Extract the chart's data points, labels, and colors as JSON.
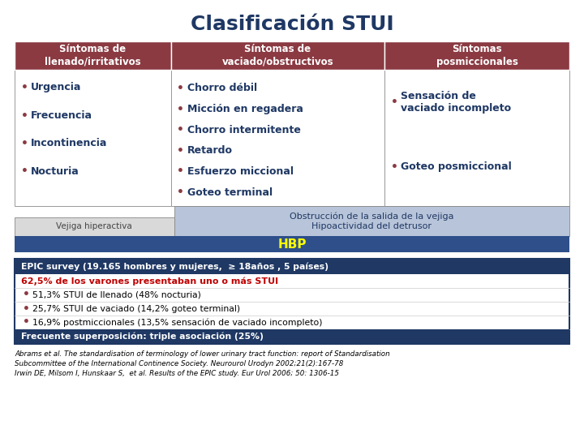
{
  "title": "Clasificación STUI",
  "title_color": "#1F3864",
  "bg_color": "#FFFFFF",
  "col1_header": "Síntomas de\nllenado/irritativos",
  "col2_header": "Síntomas de\nvaciado/obstructivos",
  "col3_header": "Síntomas\nposmiccionales",
  "header_bg": "#8B3A42",
  "header_text_color": "#FFFFFF",
  "col1_items": [
    "Urgencia",
    "Frecuencia",
    "Incontinencia",
    "Nocturia"
  ],
  "col2_items": [
    "Chorro débil",
    "Micción en regadera",
    "Chorro intermitente",
    "Retardo",
    "Esfuerzo miccional",
    "Goteo terminal"
  ],
  "col3_items": [
    "Sensación de\nvaciado incompleto",
    "Goteo posmiccional"
  ],
  "cell_text_color": "#1F3864",
  "bullet_color": "#8B3A42",
  "vejiga_text": "Vejiga hiperactiva",
  "vejiga_bg": "#D9D9D9",
  "obstruccion_text": "Obstrucción de la salida de la vejiga\nHipoactividad del detrusor",
  "obstruccion_bg": "#B8C4D9",
  "hbp_text": "HBP",
  "hbp_bg": "#2E4F8A",
  "hbp_text_color": "#FFFF00",
  "epic_header": "EPIC survey (19.165 hombres y mujeres,  ≥ 18años , 5 países)",
  "epic_header_bg": "#1F3864",
  "epic_header_color": "#FFFFFF",
  "epic_line2": "62,5% de los varones presentaban uno o más STUI",
  "epic_line2_color": "#C00000",
  "epic_bullets": [
    "51,3% STUI de llenado (48% nocturia)",
    "25,7% STUI de vaciado (14,2% goteo terminal)",
    "16,9% postmiccionales (13,5% sensación de vaciado incompleto)"
  ],
  "epic_footer": "Frecuente superposición: triple asociación (25%)",
  "epic_footer_bg": "#1F3864",
  "ref_line1": "Abrams et al. The standardisation of terminology of lower urinary tract function: report of Standardisation",
  "ref_line2": "Subcommittee of the International Continence Society. Neurourol Urodyn 2002;21(2):167-78",
  "ref_line3": "Irwin DE, Milsom I, Hunskaar S,  et al. Results of the EPIC study. Eur Urol 2006; 50: 1306-15"
}
